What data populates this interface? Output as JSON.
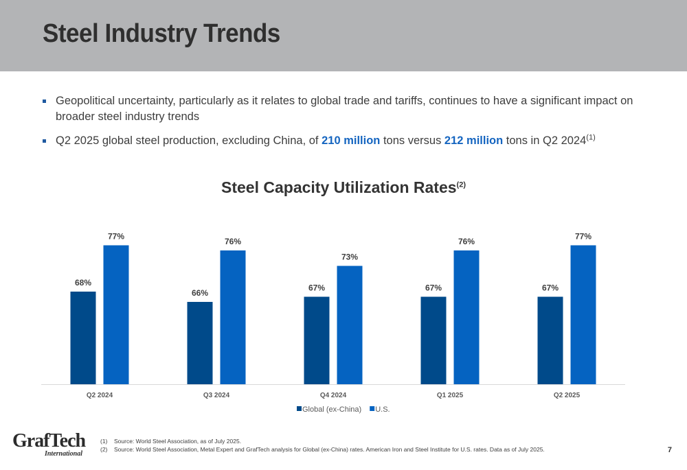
{
  "title": "Steel Industry Trends",
  "bullets": [
    {
      "text": "Geopolitical uncertainty, particularly as it relates to global trade and tariffs, continues to have a significant impact on broader steel industry trends"
    },
    {
      "pre": "Q2 2025 global steel production, excluding China, of ",
      "h1": "210 million",
      "mid": " tons versus ",
      "h2": "212 million",
      "post": " tons in Q2 2024",
      "ref": "(1)"
    }
  ],
  "chart_title": "Steel Capacity Utilization Rates",
  "chart_title_ref": "(2)",
  "chart_data": {
    "type": "bar",
    "categories": [
      "Q2 2024",
      "Q3 2024",
      "Q4 2024",
      "Q1 2025",
      "Q2 2025"
    ],
    "series": [
      {
        "name": "Global (ex-China)",
        "values": [
          68,
          66,
          67,
          67,
          67
        ],
        "color": "#004a8a"
      },
      {
        "name": "U.S.",
        "values": [
          77,
          76,
          73,
          76,
          77
        ],
        "color": "#0563c1"
      }
    ],
    "value_suffix": "%",
    "ylim": [
      50,
      80
    ],
    "grid": false,
    "legend_position": "bottom-center"
  },
  "logo": {
    "word": "GrafTech",
    "sub": "International"
  },
  "footnotes": [
    {
      "num": "(1)",
      "text": "Source: World Steel Association, as of July 2025."
    },
    {
      "num": "(2)",
      "text": "Source: World Steel Association, Metal Expert and GrafTech analysis for Global (ex-China) rates.  American Iron and Steel Institute for U.S. rates.  Data as of July 2025."
    }
  ],
  "page_number": "7",
  "colors": {
    "header_band": "#b3b4b6",
    "accent": "#1565c0"
  }
}
